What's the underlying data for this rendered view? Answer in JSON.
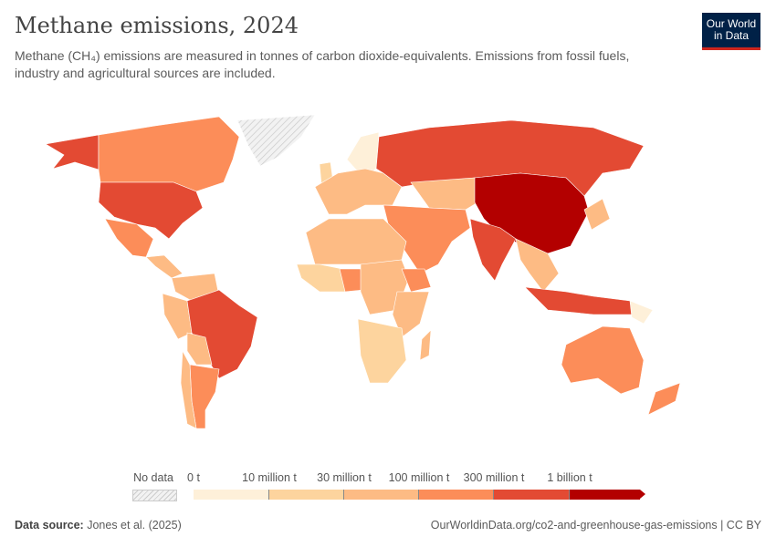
{
  "header": {
    "title": "Methane emissions, 2024",
    "subtitle": "Methane (CH₄) emissions are measured in tonnes of carbon dioxide-equivalents. Emissions from fossil fuels, industry and agricultural sources are included."
  },
  "logo": {
    "line1": "Our World",
    "line2": "in Data"
  },
  "chart_data": {
    "type": "map",
    "title": "Methane emissions, 2024",
    "legend": {
      "no_data_label": "No data",
      "ticks": [
        "0 t",
        "10 million t",
        "30 million t",
        "100 million t",
        "300 million t",
        "1 billion t"
      ],
      "bins": [
        {
          "from": 0,
          "to": 10000000
        },
        {
          "from": 10000000,
          "to": 30000000
        },
        {
          "from": 30000000,
          "to": 100000000
        },
        {
          "from": 100000000,
          "to": 300000000
        },
        {
          "from": 300000000,
          "to": 1000000000
        },
        {
          "from": 1000000000,
          "to": null
        }
      ],
      "colors": [
        "#fef0d9",
        "#fdd49e",
        "#fdbb84",
        "#fc8d59",
        "#e34a33",
        "#b30000"
      ]
    }
  },
  "footer": {
    "source_label": "Data source:",
    "source": "Jones et al. (2025)",
    "url": "OurWorldinData.org/co2-and-greenhouse-gas-emissions | CC BY"
  }
}
